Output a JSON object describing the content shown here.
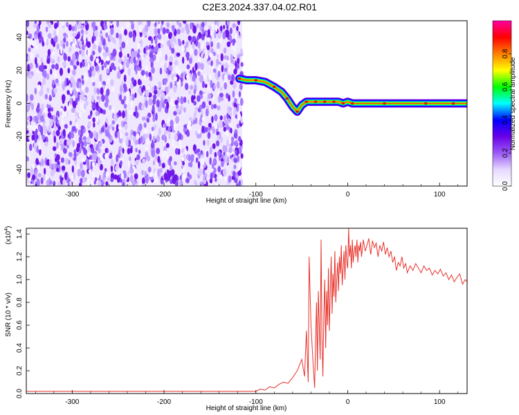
{
  "title": "C2E3.2024.337.04.02.R01",
  "chart_data": [
    {
      "type": "heatmap",
      "xlabel": "Height of straight line (km)",
      "ylabel": "Frequency (Hz)",
      "xlim": [
        -350,
        130
      ],
      "ylim": [
        -50,
        50
      ],
      "x_ticks": [
        -300,
        -200,
        -100,
        0,
        100
      ],
      "y_ticks": [
        -40,
        -20,
        0,
        20,
        40
      ],
      "noise_region_x": [
        -350,
        -115
      ],
      "ridge": {
        "x": [
          -118,
          -110,
          -100,
          -90,
          -80,
          -72,
          -66,
          -60,
          -55,
          -50,
          -45,
          -40,
          -35,
          -30,
          -25,
          -20,
          -15,
          -10,
          -5,
          0,
          5,
          20,
          40,
          60,
          85,
          100,
          115,
          130
        ],
        "y": [
          15,
          14,
          14,
          13,
          10,
          7,
          3,
          -2,
          -5,
          -1,
          1,
          1,
          1,
          1,
          1,
          1,
          1,
          1,
          0,
          1,
          0,
          0,
          0,
          0,
          0,
          0,
          0,
          0
        ]
      },
      "colorbar": {
        "label": "Normalized spectral amplitude",
        "ticks": [
          0.0,
          0.2,
          0.4,
          0.6,
          0.8
        ],
        "range": [
          0,
          1
        ],
        "colormap": [
          "#ffffff",
          "#e6d8ff",
          "#9b59f5",
          "#6a00e8",
          "#0000ff",
          "#00ffff",
          "#00ff00",
          "#ffff00",
          "#ff8000",
          "#ff0000",
          "#ff00a0"
        ]
      }
    },
    {
      "type": "line",
      "xlabel": "Height of straight line (km)",
      "ylabel": "SNR (10 * v/v)",
      "y_multiplier_label": "(x10",
      "y_multiplier_exp": "4",
      "y_multiplier_close": ")",
      "xlim": [
        -350,
        130
      ],
      "ylim": [
        0,
        1.45
      ],
      "x_ticks": [
        -300,
        -200,
        -100,
        0,
        100
      ],
      "y_ticks": [
        "0.0",
        "0.2",
        "0.4",
        "0.6",
        "0.8",
        "1.0",
        "1.2",
        "1.4"
      ],
      "series": [
        {
          "color": "#e8302a",
          "x": [
            -350,
            -300,
            -250,
            -200,
            -150,
            -120,
            -110,
            -100,
            -95,
            -90,
            -85,
            -80,
            -75,
            -70,
            -65,
            -60,
            -55,
            -50,
            -47,
            -45,
            -43,
            -42,
            -40,
            -38,
            -36,
            -35,
            -34,
            -33,
            -32,
            -30,
            -29,
            -28,
            -27,
            -26,
            -25,
            -24,
            -23,
            -22,
            -21,
            -20,
            -19,
            -18,
            -17,
            -16,
            -15,
            -14,
            -13,
            -12,
            -11,
            -10,
            -9,
            -8,
            -7,
            -6,
            -5,
            -4,
            -3,
            -2,
            -1,
            0,
            1,
            2,
            3,
            4,
            5,
            6,
            7,
            8,
            9,
            10,
            11,
            12,
            13,
            14,
            15,
            17,
            19,
            21,
            23,
            25,
            27,
            29,
            31,
            33,
            35,
            37,
            39,
            41,
            43,
            45,
            47,
            49,
            51,
            53,
            55,
            57,
            59,
            61,
            63,
            65,
            68,
            71,
            74,
            77,
            80,
            83,
            86,
            89,
            92,
            95,
            98,
            101,
            104,
            107,
            110,
            113,
            116,
            119,
            122,
            125,
            128,
            130
          ],
          "y": [
            0.02,
            0.02,
            0.02,
            0.02,
            0.02,
            0.02,
            0.02,
            0.02,
            0.04,
            0.03,
            0.06,
            0.05,
            0.08,
            0.1,
            0.09,
            0.14,
            0.2,
            0.3,
            0.15,
            0.55,
            0.1,
            1.2,
            0.6,
            0.3,
            0.05,
            0.45,
            0.8,
            0.2,
            0.9,
            0.3,
            1.35,
            0.5,
            0.15,
            0.7,
            1.0,
            0.4,
            0.9,
            0.6,
            1.1,
            0.55,
            0.9,
            1.2,
            0.7,
            1.05,
            0.85,
            1.25,
            0.8,
            1.0,
            1.15,
            0.9,
            1.2,
            1.05,
            1.3,
            0.95,
            1.1,
            1.25,
            1.0,
            1.3,
            1.15,
            1.1,
            1.45,
            1.2,
            1.3,
            1.1,
            1.35,
            1.15,
            1.25,
            1.3,
            1.2,
            1.35,
            1.15,
            1.3,
            1.25,
            1.33,
            1.2,
            1.35,
            1.25,
            1.3,
            1.36,
            1.22,
            1.34,
            1.28,
            1.32,
            1.2,
            1.3,
            1.25,
            1.33,
            1.22,
            1.28,
            1.2,
            1.25,
            1.15,
            1.2,
            1.08,
            1.15,
            1.12,
            1.2,
            1.1,
            1.14,
            1.06,
            1.12,
            1.08,
            1.14,
            1.1,
            1.06,
            1.12,
            1.08,
            1.1,
            1.04,
            1.08,
            1.05,
            1.09,
            1.03,
            1.06,
            1.0,
            1.04,
            0.98,
            1.02,
            1.05,
            0.96,
            1.0,
            0.98
          ]
        }
      ]
    }
  ]
}
